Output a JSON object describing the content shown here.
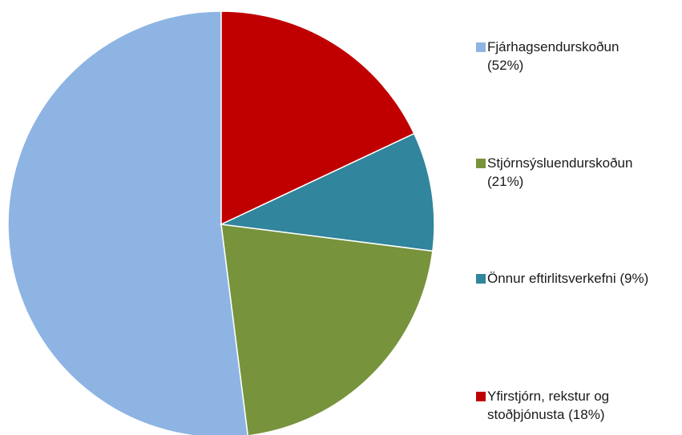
{
  "chart_data": {
    "type": "pie",
    "categories": [
      "Fjárhagsendurskoðun",
      "Stjórnsýsluendurskoðun",
      "Önnur eftirlitsverkefni",
      "Yfirstjórn, rekstur og stoðþjónusta"
    ],
    "values": [
      52,
      21,
      9,
      18
    ],
    "value_labels": [
      "(52%)",
      "(21%)",
      "(9%)",
      "(18%)"
    ],
    "colors": [
      "#8eb4e3",
      "#77933c",
      "#31859c",
      "#c00000"
    ],
    "legend": "right"
  }
}
